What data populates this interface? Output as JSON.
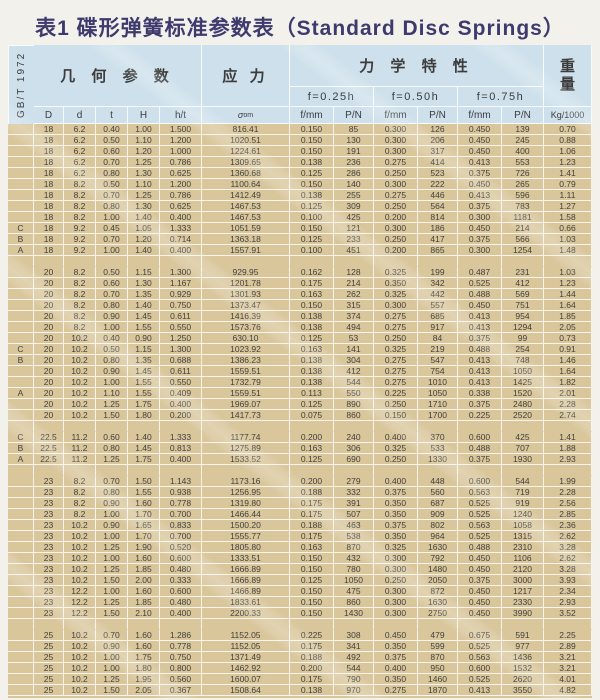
{
  "title": "表1 碟形弹簧标准参数表（Standard Disc Springs）",
  "standard_label": "GB/T 1972",
  "table": {
    "group_headers": {
      "geometry": "几 何 参 数",
      "stress": "应 力",
      "mechanical": "力 学 特 性",
      "weight_line1": "重",
      "weight_line2": "量"
    },
    "load_points": [
      "f=0.25h",
      "f=0.50h",
      "f=0.75h"
    ],
    "sigma_header": {
      "base": "σ",
      "sub": "om"
    },
    "column_headers": [
      "D",
      "d",
      "t",
      "H",
      "h/t"
    ],
    "pair_headers": {
      "deflection": "f/mm",
      "load": "P/N"
    },
    "weight_unit": "Kg/1000",
    "column_keys": [
      "series-label",
      "col-D",
      "col-d",
      "col-t",
      "col-H",
      "col-h-t",
      "col-sigma",
      "col-f1",
      "col-P1",
      "col-f2",
      "col-P2",
      "col-f3",
      "col-P3",
      "col-weight"
    ],
    "rows": [
      [
        "",
        "18",
        "6.2",
        "0.40",
        "1.00",
        "1.500",
        "816.41",
        "0.150",
        "85",
        "0.300",
        "126",
        "0.450",
        "139",
        "0.70"
      ],
      [
        "",
        "18",
        "6.2",
        "0.50",
        "1.10",
        "1.200",
        "1020.51",
        "0.150",
        "130",
        "0.300",
        "206",
        "0.450",
        "245",
        "0.88"
      ],
      [
        "",
        "18",
        "6.2",
        "0.60",
        "1.20",
        "1.000",
        "1224.61",
        "0.150",
        "191",
        "0.300",
        "317",
        "0.450",
        "400",
        "1.06"
      ],
      [
        "",
        "18",
        "6.2",
        "0.70",
        "1.25",
        "0.786",
        "1309.65",
        "0.138",
        "236",
        "0.275",
        "414",
        "0.413",
        "553",
        "1.23"
      ],
      [
        "",
        "18",
        "6.2",
        "0.80",
        "1.30",
        "0.625",
        "1360.68",
        "0.125",
        "286",
        "0.250",
        "523",
        "0.375",
        "726",
        "1.41"
      ],
      [
        "",
        "18",
        "8.2",
        "0.50",
        "1.10",
        "1.200",
        "1100.64",
        "0.150",
        "140",
        "0.300",
        "222",
        "0.450",
        "265",
        "0.79"
      ],
      [
        "",
        "18",
        "8.2",
        "0.70",
        "1.25",
        "0.786",
        "1412.49",
        "0.138",
        "255",
        "0.275",
        "446",
        "0.413",
        "596",
        "1.11"
      ],
      [
        "",
        "18",
        "8.2",
        "0.80",
        "1.30",
        "0.625",
        "1467.53",
        "0.125",
        "309",
        "0.250",
        "564",
        "0.375",
        "783",
        "1.27"
      ],
      [
        "",
        "18",
        "8.2",
        "1.00",
        "1.40",
        "0.400",
        "1467.53",
        "0.100",
        "425",
        "0.200",
        "814",
        "0.300",
        "1181",
        "1.58"
      ],
      [
        "C",
        "18",
        "9.2",
        "0.45",
        "1.05",
        "1.333",
        "1051.59",
        "0.150",
        "121",
        "0.300",
        "186",
        "0.450",
        "214",
        "0.66"
      ],
      [
        "B",
        "18",
        "9.2",
        "0.70",
        "1.20",
        "0.714",
        "1363.18",
        "0.125",
        "233",
        "0.250",
        "417",
        "0.375",
        "566",
        "1.03"
      ],
      [
        "A",
        "18",
        "9.2",
        "1.00",
        "1.40",
        "0.400",
        "1557.91",
        "0.100",
        "451",
        "0.200",
        "865",
        "0.300",
        "1254",
        "1.48"
      ],
      [],
      [
        "",
        "20",
        "8.2",
        "0.50",
        "1.15",
        "1.300",
        "929.95",
        "0.162",
        "128",
        "0.325",
        "199",
        "0.487",
        "231",
        "1.03"
      ],
      [
        "",
        "20",
        "8.2",
        "0.60",
        "1.30",
        "1.167",
        "1201.78",
        "0.175",
        "214",
        "0.350",
        "342",
        "0.525",
        "412",
        "1.23"
      ],
      [
        "",
        "20",
        "8.2",
        "0.70",
        "1.35",
        "0.929",
        "1301.93",
        "0.163",
        "262",
        "0.325",
        "442",
        "0.488",
        "569",
        "1.44"
      ],
      [
        "",
        "20",
        "8.2",
        "0.80",
        "1.40",
        "0.750",
        "1373.47",
        "0.150",
        "315",
        "0.300",
        "557",
        "0.450",
        "751",
        "1.64"
      ],
      [
        "",
        "20",
        "8.2",
        "0.90",
        "1.45",
        "0.611",
        "1416.39",
        "0.138",
        "374",
        "0.275",
        "685",
        "0.413",
        "954",
        "1.85"
      ],
      [
        "",
        "20",
        "8.2",
        "1.00",
        "1.55",
        "0.550",
        "1573.76",
        "0.138",
        "494",
        "0.275",
        "917",
        "0.413",
        "1294",
        "2.05"
      ],
      [
        "",
        "20",
        "10.2",
        "0.40",
        "0.90",
        "1.250",
        "630.10",
        "0.125",
        "53",
        "0.250",
        "84",
        "0.375",
        "99",
        "0.73"
      ],
      [
        "C",
        "20",
        "10.2",
        "0.50",
        "1.15",
        "1.300",
        "1023.92",
        "0.163",
        "141",
        "0.325",
        "219",
        "0.488",
        "254",
        "0.91"
      ],
      [
        "B",
        "20",
        "10.2",
        "0.80",
        "1.35",
        "0.688",
        "1386.23",
        "0.138",
        "304",
        "0.275",
        "547",
        "0.413",
        "748",
        "1.46"
      ],
      [
        "",
        "20",
        "10.2",
        "0.90",
        "1.45",
        "0.611",
        "1559.51",
        "0.138",
        "412",
        "0.275",
        "754",
        "0.413",
        "1050",
        "1.64"
      ],
      [
        "",
        "20",
        "10.2",
        "1.00",
        "1.55",
        "0.550",
        "1732.79",
        "0.138",
        "544",
        "0.275",
        "1010",
        "0.413",
        "1425",
        "1.82"
      ],
      [
        "A",
        "20",
        "10.2",
        "1.10",
        "1.55",
        "0.409",
        "1559.51",
        "0.113",
        "550",
        "0.225",
        "1050",
        "0.338",
        "1520",
        "2.01"
      ],
      [
        "",
        "20",
        "10.2",
        "1.25",
        "1.75",
        "0.400",
        "1969.07",
        "0.125",
        "890",
        "0.250",
        "1710",
        "0.375",
        "2480",
        "2.28"
      ],
      [
        "",
        "20",
        "10.2",
        "1.50",
        "1.80",
        "0.200",
        "1417.73",
        "0.075",
        "860",
        "0.150",
        "1700",
        "0.225",
        "2520",
        "2.74"
      ],
      [],
      [
        "C",
        "22.5",
        "11.2",
        "0.60",
        "1.40",
        "1.333",
        "1177.74",
        "0.200",
        "240",
        "0.400",
        "370",
        "0.600",
        "425",
        "1.41"
      ],
      [
        "B",
        "22.5",
        "11.2",
        "0.80",
        "1.45",
        "0.813",
        "1275.89",
        "0.163",
        "306",
        "0.325",
        "533",
        "0.488",
        "707",
        "1.88"
      ],
      [
        "A",
        "22.5",
        "11.2",
        "1.25",
        "1.75",
        "0.400",
        "1533.52",
        "0.125",
        "690",
        "0.250",
        "1330",
        "0.375",
        "1930",
        "2.93"
      ],
      [],
      [
        "",
        "23",
        "8.2",
        "0.70",
        "1.50",
        "1.143",
        "1173.16",
        "0.200",
        "279",
        "0.400",
        "448",
        "0.600",
        "544",
        "1.99"
      ],
      [
        "",
        "23",
        "8.2",
        "0.80",
        "1.55",
        "0.938",
        "1256.95",
        "0.188",
        "332",
        "0.375",
        "560",
        "0.563",
        "719",
        "2.28"
      ],
      [
        "",
        "23",
        "8.2",
        "0.90",
        "1.60",
        "0.778",
        "1319.80",
        "0.175",
        "391",
        "0.350",
        "687",
        "0.525",
        "919",
        "2.56"
      ],
      [
        "",
        "23",
        "8.2",
        "1.00",
        "1.70",
        "0.700",
        "1466.44",
        "0.175",
        "507",
        "0.350",
        "909",
        "0.525",
        "1240",
        "2.85"
      ],
      [
        "",
        "23",
        "10.2",
        "0.90",
        "1.65",
        "0.833",
        "1500.20",
        "0.188",
        "463",
        "0.375",
        "802",
        "0.563",
        "1058",
        "2.36"
      ],
      [
        "",
        "23",
        "10.2",
        "1.00",
        "1.70",
        "0.700",
        "1555.77",
        "0.175",
        "538",
        "0.350",
        "964",
        "0.525",
        "1315",
        "2.62"
      ],
      [
        "",
        "23",
        "10.2",
        "1.25",
        "1.90",
        "0.520",
        "1805.80",
        "0.163",
        "870",
        "0.325",
        "1630",
        "0.488",
        "2310",
        "3.28"
      ],
      [
        "",
        "23",
        "10.2",
        "1.00",
        "1.60",
        "0.600",
        "1333.51",
        "0.150",
        "432",
        "0.300",
        "792",
        "0.450",
        "1106",
        "2.62"
      ],
      [
        "",
        "23",
        "10.2",
        "1.25",
        "1.85",
        "0.480",
        "1666.89",
        "0.150",
        "780",
        "0.300",
        "1480",
        "0.450",
        "2120",
        "3.28"
      ],
      [
        "",
        "23",
        "10.2",
        "1.50",
        "2.00",
        "0.333",
        "1666.89",
        "0.125",
        "1050",
        "0.250",
        "2050",
        "0.375",
        "3000",
        "3.93"
      ],
      [
        "",
        "23",
        "12.2",
        "1.00",
        "1.60",
        "0.600",
        "1466.89",
        "0.150",
        "475",
        "0.300",
        "872",
        "0.450",
        "1217",
        "2.34"
      ],
      [
        "",
        "23",
        "12.2",
        "1.25",
        "1.85",
        "0.480",
        "1833.61",
        "0.150",
        "860",
        "0.300",
        "1630",
        "0.450",
        "2330",
        "2.93"
      ],
      [
        "",
        "23",
        "12.2",
        "1.50",
        "2.10",
        "0.400",
        "2200.33",
        "0.150",
        "1430",
        "0.300",
        "2750",
        "0.450",
        "3990",
        "3.52"
      ],
      [],
      [
        "",
        "25",
        "10.2",
        "0.70",
        "1.60",
        "1.286",
        "1152.05",
        "0.225",
        "308",
        "0.450",
        "479",
        "0.675",
        "591",
        "2.25"
      ],
      [
        "",
        "25",
        "10.2",
        "0.90",
        "1.60",
        "0.778",
        "1152.05",
        "0.175",
        "341",
        "0.350",
        "599",
        "0.525",
        "977",
        "2.89"
      ],
      [
        "",
        "25",
        "10.2",
        "1.00",
        "1.75",
        "0.750",
        "1371.49",
        "0.188",
        "492",
        "0.375",
        "870",
        "0.563",
        "1436",
        "3.21"
      ],
      [
        "",
        "25",
        "10.2",
        "1.00",
        "1.80",
        "0.800",
        "1462.92",
        "0.200",
        "544",
        "0.400",
        "950",
        "0.600",
        "1532",
        "3.21"
      ],
      [
        "",
        "25",
        "10.2",
        "1.25",
        "1.95",
        "0.560",
        "1600.07",
        "0.175",
        "790",
        "0.350",
        "1460",
        "0.525",
        "2620",
        "4.01"
      ],
      [
        "",
        "25",
        "10.2",
        "1.50",
        "2.05",
        "0.367",
        "1508.64",
        "0.138",
        "970",
        "0.275",
        "1870",
        "0.413",
        "3550",
        "4.82"
      ]
    ]
  },
  "colors": {
    "title": "#3e3a6e",
    "header_bg": "#cde0eb",
    "row_bg": "#d9c69b",
    "gridline": "#ffffff",
    "text": "#42413f"
  }
}
